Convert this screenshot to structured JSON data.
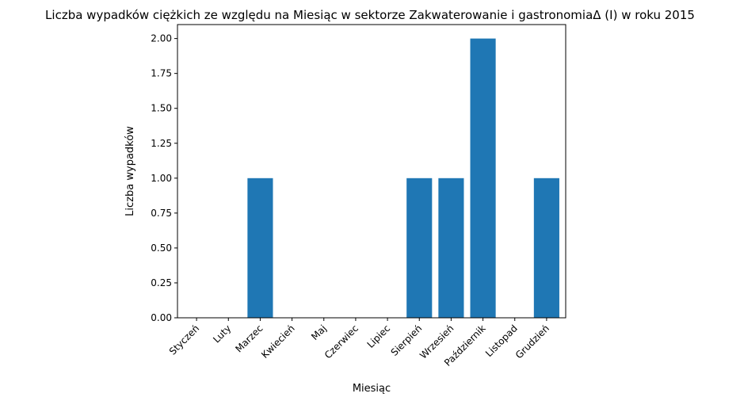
{
  "chart_data": {
    "type": "bar",
    "title": "Liczba wypadków ciężkich ze względu na Miesiąc w sektorze Zakwaterowanie i gastronomiaΔ (I) w roku 2015",
    "xlabel": "Miesiąc",
    "ylabel": "Liczba wypadków",
    "categories": [
      "Styczeń",
      "Luty",
      "Marzec",
      "Kwiecień",
      "Maj",
      "Czerwiec",
      "Lipiec",
      "Sierpień",
      "Wrzesień",
      "Październik",
      "Listopad",
      "Grudzień"
    ],
    "values": [
      0,
      0,
      1,
      0,
      0,
      0,
      0,
      1,
      1,
      2,
      0,
      1
    ],
    "ylim": [
      0,
      2.1
    ],
    "yticks": [
      "0.00",
      "0.25",
      "0.50",
      "0.75",
      "1.00",
      "1.25",
      "1.50",
      "1.75",
      "2.00"
    ],
    "bar_color": "#1f77b4",
    "grid": false,
    "legend": "none"
  }
}
